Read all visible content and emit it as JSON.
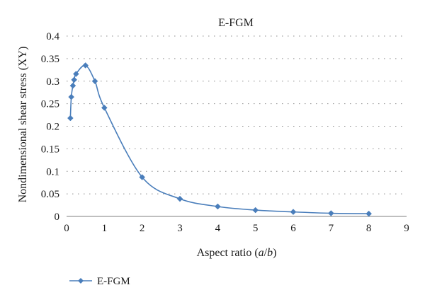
{
  "chart_data": {
    "type": "line",
    "title": "E-FGM",
    "xlabel": "Aspect ratio (a/b)",
    "ylabel": "Nondimensional shear stress (XY)",
    "xlim": [
      0,
      9
    ],
    "ylim": [
      0,
      0.4
    ],
    "xticks": [
      0,
      1,
      2,
      3,
      4,
      5,
      6,
      7,
      8,
      9
    ],
    "yticks": [
      0,
      0.05,
      0.1,
      0.15,
      0.2,
      0.25,
      0.3,
      0.35,
      0.4
    ],
    "ytick_labels": [
      "0",
      "0.05",
      "0.1",
      "0.15",
      "0.2",
      "0.25",
      "0.3",
      "0.35",
      "0.4"
    ],
    "grid": "horizontal-dotted",
    "legend_position": "bottom-left",
    "series": [
      {
        "name": "E-FGM",
        "color": "#4a7ebb",
        "marker": "diamond",
        "x": [
          0.1,
          0.125,
          0.167,
          0.2,
          0.25,
          0.5,
          0.75,
          1,
          2,
          3,
          4,
          5,
          6,
          7,
          8
        ],
        "y": [
          0.218,
          0.265,
          0.29,
          0.303,
          0.316,
          0.335,
          0.3,
          0.241,
          0.087,
          0.039,
          0.022,
          0.014,
          0.01,
          0.007,
          0.006
        ]
      }
    ]
  }
}
